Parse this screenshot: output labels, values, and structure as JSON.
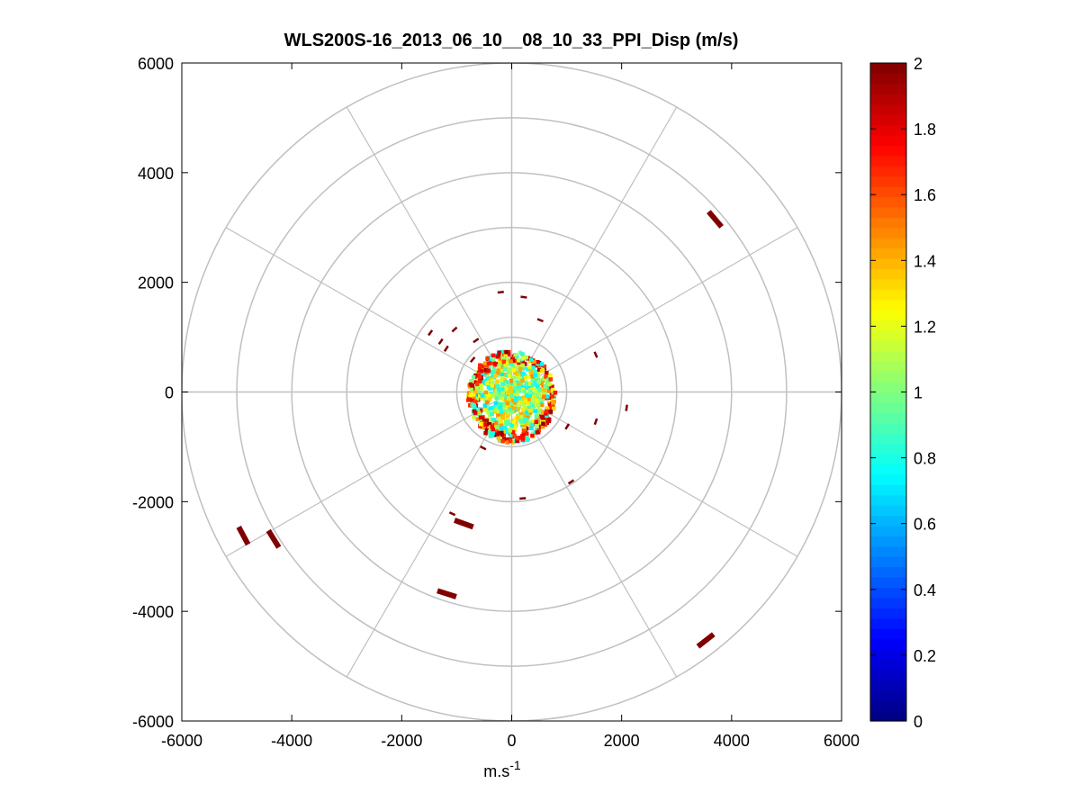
{
  "chart_data": {
    "type": "scatter",
    "title": "WLS200S-16_2013_06_10__08_10_33_PPI_Disp (m/s)",
    "xlabel": "m.s",
    "xlabel_superscript": "-1",
    "ylabel": "",
    "xlim": [
      -6000,
      6000
    ],
    "ylim": [
      -6000,
      6000
    ],
    "xticks": [
      "-6000",
      "-4000",
      "-2000",
      "0",
      "2000",
      "4000",
      "6000"
    ],
    "yticks": [
      "6000",
      "4000",
      "2000",
      "0",
      "-2000",
      "-4000",
      "-6000"
    ],
    "polar_grid": {
      "ring_step": 1000,
      "max_radius": 6000,
      "spoke_step_deg": 30
    },
    "colorbar": {
      "colormap": "jet",
      "range": [
        0,
        2
      ],
      "ticks": [
        "0",
        "0.2",
        "0.4",
        "0.6",
        "0.8",
        "1",
        "1.2",
        "1.4",
        "1.6",
        "1.8",
        "2"
      ]
    },
    "colors": {
      "grid": "#c0c0c0",
      "high": "#800000"
    },
    "dense_core": {
      "max_range": 800,
      "value_range": [
        0.7,
        1.5
      ]
    },
    "points": [
      {
        "x": 3700,
        "y": 3150,
        "value": 2
      },
      {
        "x": -4880,
        "y": -2620,
        "value": 2
      },
      {
        "x": -4330,
        "y": -2680,
        "value": 2
      },
      {
        "x": -1080,
        "y": -2220,
        "value": 2
      },
      {
        "x": -870,
        "y": -2400,
        "value": 2
      },
      {
        "x": -1180,
        "y": -3680,
        "value": 2
      },
      {
        "x": 3530,
        "y": -4530,
        "value": 2
      },
      {
        "x": -200,
        "y": 1820,
        "value": 2
      },
      {
        "x": 220,
        "y": 1730,
        "value": 2
      },
      {
        "x": 520,
        "y": 1310,
        "value": 2
      },
      {
        "x": -1480,
        "y": 1080,
        "value": 2
      },
      {
        "x": -1040,
        "y": 1140,
        "value": 2
      },
      {
        "x": -650,
        "y": 940,
        "value": 2
      },
      {
        "x": 1530,
        "y": 680,
        "value": 2
      },
      {
        "x": 2090,
        "y": -290,
        "value": 2
      },
      {
        "x": 1530,
        "y": -540,
        "value": 2
      },
      {
        "x": 1010,
        "y": -630,
        "value": 2
      },
      {
        "x": 1080,
        "y": -1640,
        "value": 2
      },
      {
        "x": 200,
        "y": -1940,
        "value": 2
      },
      {
        "x": -520,
        "y": -1020,
        "value": 2
      },
      {
        "x": -1190,
        "y": 790,
        "value": 2
      },
      {
        "x": -1290,
        "y": 920,
        "value": 2
      },
      {
        "x": -710,
        "y": 590,
        "value": 2
      }
    ]
  }
}
